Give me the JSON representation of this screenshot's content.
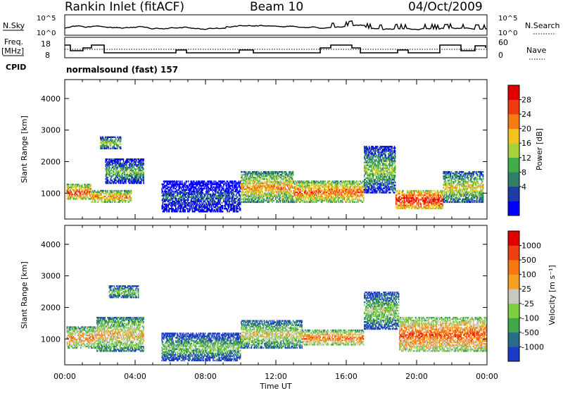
{
  "header": {
    "station": "Rankin Inlet (fitACF)",
    "beam": "Beam 10",
    "date": "04/Oct/2009"
  },
  "noise_panel": {
    "left_label": "N.Sky",
    "left_ticks": [
      "10^5",
      "10^0"
    ],
    "right_label": "N.Search",
    "right_ticks": [
      "10^5",
      "10^0"
    ]
  },
  "freq_panel": {
    "left_label_1": "Freq.",
    "left_label_2": "[MHz]",
    "left_ticks": [
      "18",
      "8"
    ],
    "right_label": "Nave",
    "right_ticks": [
      "60",
      "0"
    ],
    "cpid_label": "CPID",
    "cpid_value": "normalsound (fast) 157"
  },
  "chart_data": [
    {
      "type": "heatmap",
      "title": "",
      "quantity": "Power",
      "ylabel": "Slant Range [km]",
      "xlabel": "Time UT",
      "x_ticks": [
        "00:00",
        "04:00",
        "08:00",
        "12:00",
        "16:00",
        "20:00",
        "00:00"
      ],
      "x_range_hours": [
        0,
        24
      ],
      "ylim": [
        180,
        4600
      ],
      "y_ticks": [
        1000,
        2000,
        3000,
        4000
      ],
      "colorbar": {
        "label": "Power [dB]",
        "ticks": [
          "28",
          "24",
          "20",
          "16",
          "12",
          "8",
          "4"
        ],
        "colors": [
          "#0000ff",
          "#1c3ca8",
          "#2f7f6a",
          "#3fae4a",
          "#a6d23c",
          "#f2c31f",
          "#f57c14",
          "#ee3a10",
          "#e00000"
        ]
      },
      "echo_bands": [
        {
          "t0": 0.1,
          "t1": 1.5,
          "r0": 800,
          "r1": 1300,
          "level": 0.85
        },
        {
          "t0": 1.5,
          "t1": 3.8,
          "r0": 700,
          "r1": 1100,
          "level": 0.75
        },
        {
          "t0": 2.3,
          "t1": 4.5,
          "r0": 1300,
          "r1": 2100,
          "level": 0.45
        },
        {
          "t0": 2.0,
          "t1": 3.2,
          "r0": 2400,
          "r1": 2800,
          "level": 0.55
        },
        {
          "t0": 5.5,
          "t1": 10.0,
          "r0": 400,
          "r1": 1400,
          "level": 0.25
        },
        {
          "t0": 10.0,
          "t1": 13.0,
          "r0": 700,
          "r1": 1700,
          "level": 0.7
        },
        {
          "t0": 13.0,
          "t1": 17.0,
          "r0": 700,
          "r1": 1400,
          "level": 0.8
        },
        {
          "t0": 17.0,
          "t1": 18.8,
          "r0": 1000,
          "r1": 2500,
          "level": 0.5
        },
        {
          "t0": 18.8,
          "t1": 21.5,
          "r0": 500,
          "r1": 1100,
          "level": 0.95
        },
        {
          "t0": 21.5,
          "t1": 23.8,
          "r0": 700,
          "r1": 1700,
          "level": 0.6
        }
      ]
    },
    {
      "type": "heatmap",
      "title": "",
      "quantity": "Velocity",
      "ylabel": "Slant Range [km]",
      "xlabel": "Time UT",
      "x_ticks": [
        "00:00",
        "04:00",
        "08:00",
        "12:00",
        "16:00",
        "20:00",
        "00:00"
      ],
      "x_range_hours": [
        0,
        24
      ],
      "ylim": [
        180,
        4600
      ],
      "y_ticks": [
        1000,
        2000,
        3000,
        4000
      ],
      "colorbar": {
        "label": "Velocity [m s⁻¹]",
        "ticks": [
          "1000",
          "500",
          "100",
          "25",
          "-25",
          "-100",
          "-500",
          "-1000"
        ],
        "colors": [
          "#1c3cc8",
          "#2a6a8a",
          "#3fa64a",
          "#7fd040",
          "#c8c8c0",
          "#f5a020",
          "#f57814",
          "#ee4010",
          "#e00000"
        ]
      },
      "echo_bands": [
        {
          "t0": 0.1,
          "t1": 1.8,
          "r0": 700,
          "r1": 1400,
          "level": 0.7
        },
        {
          "t0": 1.8,
          "t1": 4.5,
          "r0": 600,
          "r1": 1700,
          "level": 0.6
        },
        {
          "t0": 2.5,
          "t1": 4.2,
          "r0": 2300,
          "r1": 2700,
          "level": 0.45
        },
        {
          "t0": 5.5,
          "t1": 10.0,
          "r0": 300,
          "r1": 1200,
          "level": 0.4
        },
        {
          "t0": 10.0,
          "t1": 13.5,
          "r0": 700,
          "r1": 1600,
          "level": 0.55
        },
        {
          "t0": 13.5,
          "t1": 17.0,
          "r0": 800,
          "r1": 1300,
          "level": 0.75
        },
        {
          "t0": 17.0,
          "t1": 19.0,
          "r0": 1300,
          "r1": 2500,
          "level": 0.45
        },
        {
          "t0": 19.0,
          "t1": 24.0,
          "r0": 600,
          "r1": 1700,
          "level": 0.8
        }
      ]
    }
  ]
}
